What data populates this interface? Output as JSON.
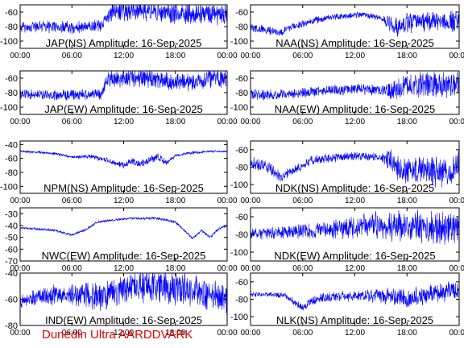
{
  "footer": "Dunedin Ultra AARDDVARK",
  "series_color": "#0000ff",
  "frame_color": "#000000",
  "chart_data": [
    {
      "type": "line",
      "title": "JAP(NS) Amplitude: 16-Sep-2025",
      "xlabel": "",
      "ylabel": "",
      "xticks": [
        "00:00",
        "06:00",
        "12:00",
        "18:00",
        "00:00"
      ],
      "xlim": [
        0,
        24
      ],
      "ylim": [
        -110,
        -50
      ],
      "yticks": [
        -60,
        -80,
        -100
      ],
      "grid": false,
      "profile": [
        [
          0,
          -82
        ],
        [
          2,
          -80
        ],
        [
          4,
          -80
        ],
        [
          6,
          -81
        ],
        [
          8,
          -80
        ],
        [
          9.5,
          -78
        ],
        [
          10.5,
          -60
        ],
        [
          12,
          -58
        ],
        [
          14,
          -59
        ],
        [
          16,
          -60
        ],
        [
          18,
          -62
        ],
        [
          20,
          -62
        ],
        [
          22,
          -62
        ],
        [
          24,
          -62
        ]
      ],
      "spread": [
        [
          0,
          14
        ],
        [
          10,
          14
        ],
        [
          10.5,
          22
        ],
        [
          24,
          24
        ]
      ]
    },
    {
      "type": "line",
      "title": "NAA(NS) Amplitude: 16-Sep-2025",
      "xlabel": "",
      "ylabel": "",
      "xticks": [
        "00:00",
        "06:00",
        "12:00",
        "18:00",
        "00:00"
      ],
      "xlim": [
        0,
        24
      ],
      "ylim": [
        -110,
        -50
      ],
      "yticks": [
        -60,
        -80,
        -100
      ],
      "grid": false,
      "profile": [
        [
          0,
          -82
        ],
        [
          2,
          -85
        ],
        [
          3.5,
          -88
        ],
        [
          5,
          -80
        ],
        [
          7,
          -72
        ],
        [
          9,
          -68
        ],
        [
          11,
          -65
        ],
        [
          13,
          -64
        ],
        [
          15,
          -68
        ],
        [
          16.5,
          -82
        ],
        [
          18,
          -75
        ],
        [
          20,
          -72
        ],
        [
          22,
          -74
        ],
        [
          24,
          -72
        ]
      ],
      "spread": [
        [
          0,
          10
        ],
        [
          7,
          8
        ],
        [
          15,
          6
        ],
        [
          16.5,
          24
        ],
        [
          24,
          24
        ]
      ]
    },
    {
      "type": "line",
      "title": "JAP(EW) Amplitude: 16-Sep-2025",
      "xlabel": "",
      "ylabel": "",
      "xticks": [
        "00:00",
        "06:00",
        "12:00",
        "18:00",
        "00:00"
      ],
      "xlim": [
        0,
        24
      ],
      "ylim": [
        -110,
        -50
      ],
      "yticks": [
        -60,
        -80,
        -100
      ],
      "grid": false,
      "profile": [
        [
          0,
          -82
        ],
        [
          3,
          -84
        ],
        [
          6,
          -83
        ],
        [
          9.5,
          -82
        ],
        [
          10,
          -62
        ],
        [
          12,
          -60
        ],
        [
          14,
          -60
        ],
        [
          16,
          -62
        ],
        [
          18,
          -64
        ],
        [
          20,
          -66
        ],
        [
          22,
          -60
        ],
        [
          24,
          -62
        ]
      ],
      "spread": [
        [
          0,
          12
        ],
        [
          9.8,
          12
        ],
        [
          10,
          20
        ],
        [
          24,
          22
        ]
      ]
    },
    {
      "type": "line",
      "title": "NAA(EW) Amplitude: 16-Sep-2025",
      "xlabel": "",
      "ylabel": "",
      "xticks": [
        "00:00",
        "06:00",
        "12:00",
        "18:00",
        "00:00"
      ],
      "xlim": [
        0,
        24
      ],
      "ylim": [
        -110,
        -50
      ],
      "yticks": [
        -60,
        -80,
        -100
      ],
      "grid": false,
      "profile": [
        [
          0,
          -82
        ],
        [
          2,
          -84
        ],
        [
          4,
          -82
        ],
        [
          6,
          -80
        ],
        [
          9,
          -77
        ],
        [
          12,
          -75
        ],
        [
          15,
          -76
        ],
        [
          16.5,
          -78
        ],
        [
          18,
          -70
        ],
        [
          20,
          -68
        ],
        [
          22,
          -70
        ],
        [
          24,
          -70
        ]
      ],
      "spread": [
        [
          0,
          12
        ],
        [
          15,
          12
        ],
        [
          16.5,
          26
        ],
        [
          24,
          28
        ]
      ]
    },
    {
      "type": "line",
      "title": "NPM(NS) Amplitude: 16-Sep-2025",
      "xlabel": "",
      "ylabel": "",
      "xticks": [
        "00:00",
        "06:00",
        "12:00",
        "18:00",
        "00:00"
      ],
      "xlim": [
        0,
        24
      ],
      "ylim": [
        -110,
        -35
      ],
      "yticks": [
        -40,
        -60,
        -80,
        -100
      ],
      "grid": false,
      "profile": [
        [
          0,
          -50
        ],
        [
          2,
          -51
        ],
        [
          4,
          -53
        ],
        [
          6,
          -58
        ],
        [
          8,
          -57
        ],
        [
          10,
          -62
        ],
        [
          12,
          -70
        ],
        [
          13,
          -64
        ],
        [
          14,
          -68
        ],
        [
          15,
          -62
        ],
        [
          16,
          -58
        ],
        [
          17,
          -66
        ],
        [
          18,
          -56
        ],
        [
          20,
          -52
        ],
        [
          22,
          -50
        ],
        [
          24,
          -50
        ]
      ],
      "spread": [
        [
          0,
          3
        ],
        [
          6,
          3
        ],
        [
          9,
          6
        ],
        [
          16,
          10
        ],
        [
          18,
          4
        ],
        [
          24,
          2
        ]
      ]
    },
    {
      "type": "line",
      "title": "NDK(NS) Amplitude: 16-Sep-2025",
      "xlabel": "",
      "ylabel": "",
      "xticks": [
        "00:00",
        "06:00",
        "12:00",
        "18:00",
        "00:00"
      ],
      "xlim": [
        0,
        24
      ],
      "ylim": [
        -110,
        -50
      ],
      "yticks": [
        -60,
        -80,
        -100
      ],
      "grid": false,
      "profile": [
        [
          0,
          -75
        ],
        [
          2,
          -80
        ],
        [
          3.5,
          -92
        ],
        [
          5,
          -84
        ],
        [
          7,
          -72
        ],
        [
          9,
          -70
        ],
        [
          12,
          -67
        ],
        [
          14,
          -68
        ],
        [
          16,
          -72
        ],
        [
          17,
          -82
        ],
        [
          19,
          -82
        ],
        [
          22,
          -85
        ],
        [
          24,
          -80
        ]
      ],
      "spread": [
        [
          0,
          12
        ],
        [
          8,
          8
        ],
        [
          15,
          8
        ],
        [
          16.5,
          24
        ],
        [
          24,
          30
        ]
      ]
    },
    {
      "type": "line",
      "title": "NWC(EW) Amplitude: 16-Sep-2025",
      "xlabel": "",
      "ylabel": "",
      "xticks": [
        "00:00",
        "06:00",
        "12:00",
        "18:00",
        "00:00"
      ],
      "xlim": [
        0,
        24
      ],
      "ylim": [
        -70,
        -25
      ],
      "yticks": [
        -30,
        -40,
        -50,
        -60,
        -70
      ],
      "grid": false,
      "profile": [
        [
          0,
          -42
        ],
        [
          2,
          -43
        ],
        [
          4,
          -44
        ],
        [
          6,
          -48
        ],
        [
          7.5,
          -44
        ],
        [
          9,
          -37
        ],
        [
          11,
          -35
        ],
        [
          13,
          -34
        ],
        [
          16,
          -34
        ],
        [
          18,
          -37
        ],
        [
          19,
          -44
        ],
        [
          20,
          -51
        ],
        [
          21,
          -44
        ],
        [
          22,
          -50
        ],
        [
          23,
          -43
        ],
        [
          24,
          -40
        ]
      ],
      "spread": [
        [
          0,
          1.5
        ],
        [
          24,
          2
        ]
      ]
    },
    {
      "type": "line",
      "title": "NDK(EW) Amplitude: 16-Sep-2025",
      "xlabel": "",
      "ylabel": "",
      "xticks": [
        "00:00",
        "06:00",
        "12:00",
        "18:00",
        "00:00"
      ],
      "xlim": [
        0,
        24
      ],
      "ylim": [
        -110,
        -50
      ],
      "yticks": [
        -60,
        -80,
        -100
      ],
      "grid": false,
      "profile": [
        [
          0,
          -80
        ],
        [
          3,
          -78
        ],
        [
          6,
          -76
        ],
        [
          9,
          -74
        ],
        [
          12,
          -72
        ],
        [
          15,
          -70
        ],
        [
          18,
          -70
        ],
        [
          20,
          -72
        ],
        [
          22,
          -74
        ],
        [
          24,
          -72
        ]
      ],
      "spread": [
        [
          0,
          10
        ],
        [
          8,
          14
        ],
        [
          12,
          22
        ],
        [
          16,
          28
        ],
        [
          24,
          28
        ]
      ]
    },
    {
      "type": "line",
      "title": "IND(EW) Amplitude: 16-Sep-2025",
      "xlabel": "",
      "ylabel": "",
      "xticks": [
        "00:00",
        "06:00",
        "12:00",
        "18:00",
        "00:00"
      ],
      "xlim": [
        0,
        24
      ],
      "ylim": [
        -80,
        -40
      ],
      "yticks": [
        -40,
        -60,
        -80
      ],
      "grid": false,
      "profile": [
        [
          0,
          -62
        ],
        [
          3,
          -57
        ],
        [
          6,
          -56
        ],
        [
          9,
          -58
        ],
        [
          11,
          -55
        ],
        [
          13,
          -50
        ],
        [
          16,
          -50
        ],
        [
          19,
          -53
        ],
        [
          22,
          -57
        ],
        [
          24,
          -62
        ]
      ],
      "spread": [
        [
          0,
          8
        ],
        [
          4,
          12
        ],
        [
          10,
          18
        ],
        [
          16,
          22
        ],
        [
          24,
          18
        ]
      ]
    },
    {
      "type": "line",
      "title": "NLK(NS) Amplitude: 16-Sep-2025",
      "xlabel": "",
      "ylabel": "",
      "xticks": [
        "00:00",
        "06:00",
        "12:00",
        "18:00",
        "00:00"
      ],
      "xlim": [
        0,
        24
      ],
      "ylim": [
        -110,
        -50
      ],
      "yticks": [
        -60,
        -80,
        -100
      ],
      "grid": false,
      "profile": [
        [
          0,
          -75
        ],
        [
          2,
          -74
        ],
        [
          4,
          -76
        ],
        [
          6,
          -90
        ],
        [
          7,
          -82
        ],
        [
          9,
          -77
        ],
        [
          12,
          -76
        ],
        [
          15,
          -76
        ],
        [
          17,
          -77
        ],
        [
          18,
          -80
        ],
        [
          20,
          -76
        ],
        [
          22,
          -72
        ],
        [
          24,
          -72
        ]
      ],
      "spread": [
        [
          0,
          4
        ],
        [
          5,
          6
        ],
        [
          8,
          10
        ],
        [
          12,
          10
        ],
        [
          17,
          18
        ],
        [
          24,
          18
        ]
      ]
    }
  ]
}
